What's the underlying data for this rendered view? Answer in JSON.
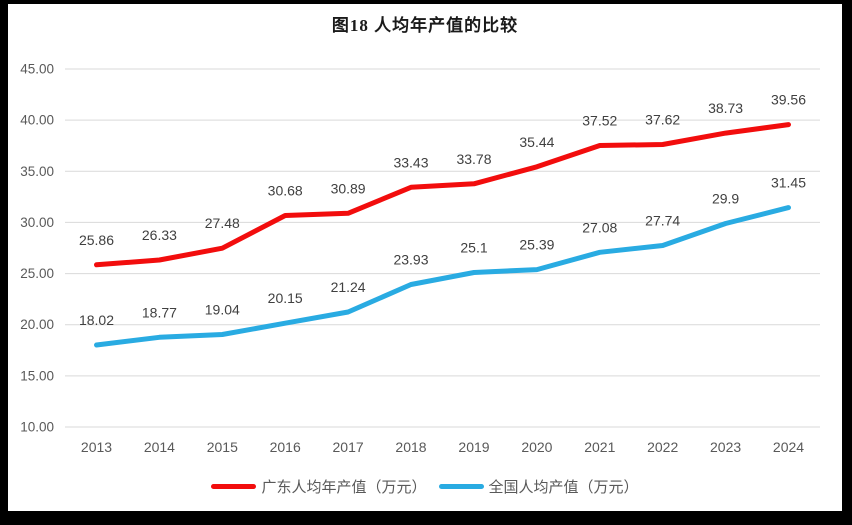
{
  "window": {
    "frame_color": "#000000",
    "background_color": "#FFFFFF"
  },
  "colors": {
    "grid": "#D9D9D9",
    "axis_text": "#595959",
    "data_label": "#404040",
    "title_text": "#1A1A1A"
  },
  "chart_data": {
    "type": "line",
    "title": "图18 人均年产值的比较",
    "xlabel": "",
    "ylabel": "",
    "ylim": [
      10,
      45
    ],
    "grid": true,
    "legend_position": "bottom",
    "categories": [
      "2013",
      "2014",
      "2015",
      "2016",
      "2017",
      "2018",
      "2019",
      "2020",
      "2021",
      "2022",
      "2023",
      "2024"
    ],
    "y_ticks": [
      "45.00",
      "40.00",
      "35.00",
      "30.00",
      "25.00",
      "20.00",
      "15.00",
      "10.00"
    ],
    "series": [
      {
        "name": "广东人均年产值（万元）",
        "color": "#F20D0D",
        "values": [
          25.86,
          26.33,
          27.48,
          30.68,
          30.89,
          33.43,
          33.78,
          35.44,
          37.52,
          37.62,
          38.73,
          39.56
        ],
        "labels": [
          "25.86",
          "26.33",
          "27.48",
          "30.68",
          "30.89",
          "33.43",
          "33.78",
          "35.44",
          "37.52",
          "37.62",
          "38.73",
          "39.56"
        ]
      },
      {
        "name": "全国人均产值（万元）",
        "color": "#29ABE2",
        "values": [
          18.02,
          18.77,
          19.04,
          20.15,
          21.24,
          23.93,
          25.1,
          25.39,
          27.08,
          27.74,
          29.9,
          31.45
        ],
        "labels": [
          "18.02",
          "18.77",
          "19.04",
          "20.15",
          "21.24",
          "23.93",
          "25.1",
          "25.39",
          "27.08",
          "27.74",
          "29.9",
          "31.45"
        ]
      }
    ]
  }
}
